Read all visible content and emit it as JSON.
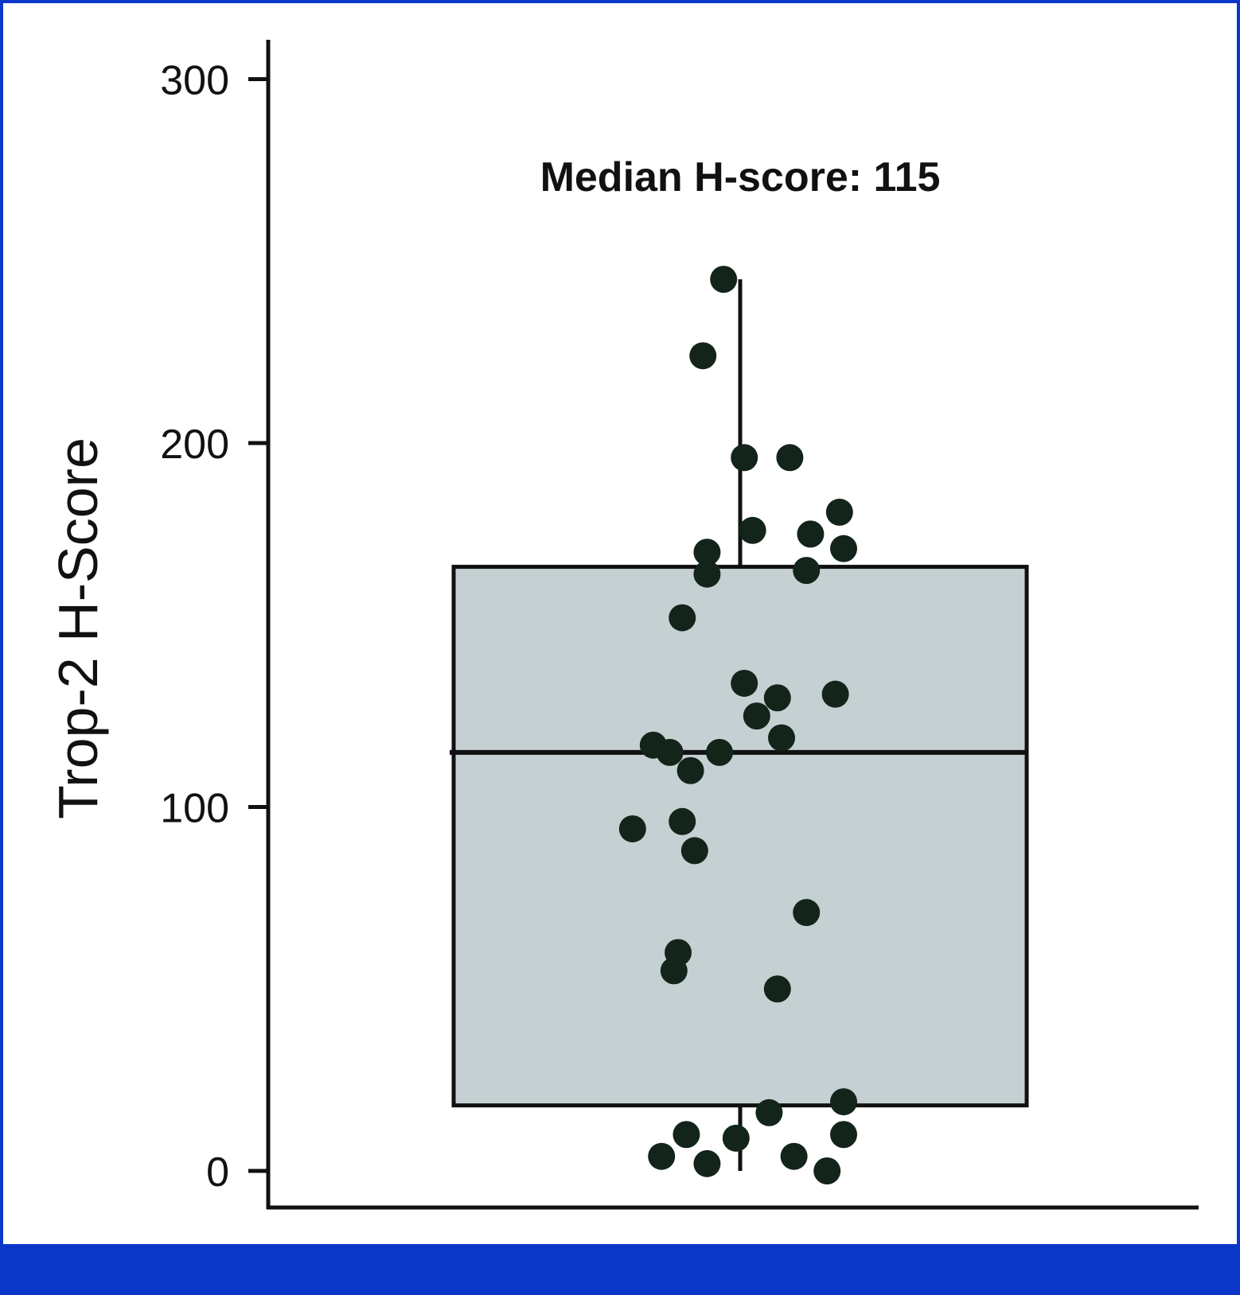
{
  "chart_data": {
    "type": "box",
    "ylabel": "Trop-2 H-Score",
    "xlabel": "",
    "ylim": [
      -10,
      310
    ],
    "yticks": [
      0,
      100,
      200,
      300
    ],
    "annotation": "Median H-score: 115",
    "box": {
      "q1": 18,
      "median": 115,
      "q3": 166,
      "whisker_low": 0,
      "whisker_high": 245
    },
    "points": [
      {
        "x": -0.04,
        "y": 245
      },
      {
        "x": -0.09,
        "y": 224
      },
      {
        "x": 0.01,
        "y": 196
      },
      {
        "x": 0.12,
        "y": 196
      },
      {
        "x": 0.24,
        "y": 181
      },
      {
        "x": 0.03,
        "y": 176
      },
      {
        "x": 0.17,
        "y": 175
      },
      {
        "x": -0.08,
        "y": 170
      },
      {
        "x": 0.25,
        "y": 171
      },
      {
        "x": -0.08,
        "y": 164
      },
      {
        "x": 0.16,
        "y": 165
      },
      {
        "x": -0.14,
        "y": 152
      },
      {
        "x": 0.01,
        "y": 134
      },
      {
        "x": 0.09,
        "y": 130
      },
      {
        "x": 0.23,
        "y": 131
      },
      {
        "x": 0.04,
        "y": 125
      },
      {
        "x": 0.1,
        "y": 119
      },
      {
        "x": -0.21,
        "y": 117
      },
      {
        "x": -0.17,
        "y": 115
      },
      {
        "x": -0.05,
        "y": 115
      },
      {
        "x": -0.12,
        "y": 110
      },
      {
        "x": -0.26,
        "y": 94
      },
      {
        "x": -0.14,
        "y": 96
      },
      {
        "x": -0.11,
        "y": 88
      },
      {
        "x": 0.16,
        "y": 71
      },
      {
        "x": -0.15,
        "y": 60
      },
      {
        "x": -0.16,
        "y": 55
      },
      {
        "x": 0.09,
        "y": 50
      },
      {
        "x": 0.25,
        "y": 19
      },
      {
        "x": 0.07,
        "y": 16
      },
      {
        "x": -0.13,
        "y": 10
      },
      {
        "x": -0.01,
        "y": 9
      },
      {
        "x": 0.25,
        "y": 10
      },
      {
        "x": -0.19,
        "y": 4
      },
      {
        "x": 0.13,
        "y": 4
      },
      {
        "x": -0.08,
        "y": 2
      },
      {
        "x": 0.21,
        "y": 0
      }
    ]
  },
  "colors": {
    "frame": "#0a37c8",
    "box_fill": "#c5d0d3",
    "point_fill": "#13241a",
    "axis": "#111111"
  }
}
